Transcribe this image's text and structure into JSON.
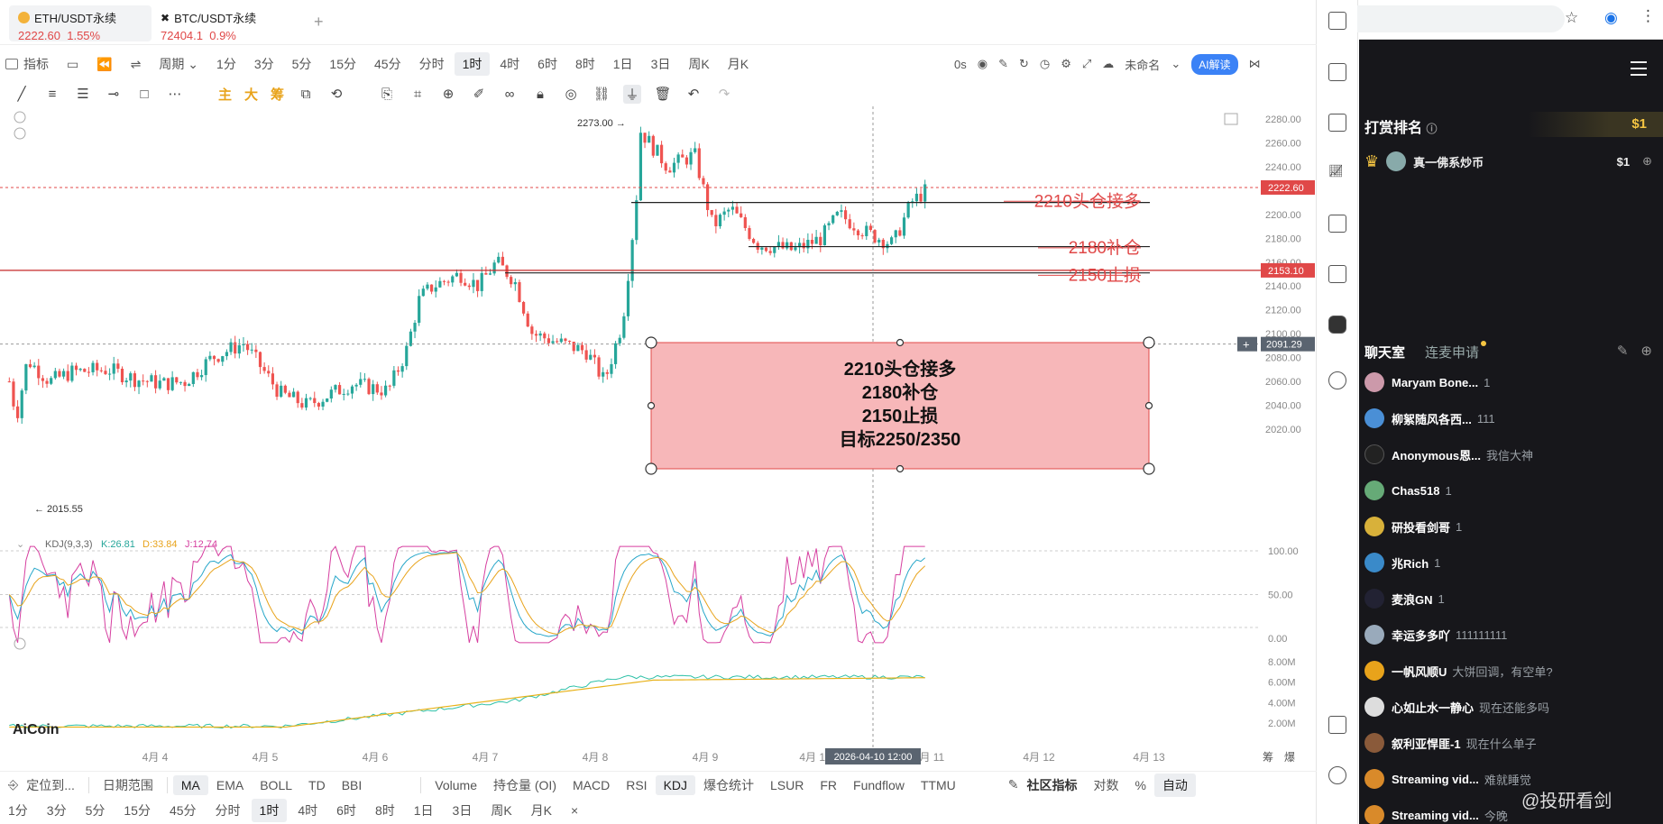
{
  "tabs": [
    {
      "name": "ETH/USDT永续",
      "price": "2222.60",
      "change": "1.55%"
    },
    {
      "name": "BTC/USDT永续",
      "price": "72404.1",
      "change": "0.9%"
    }
  ],
  "toolbar": {
    "indicator": "指标",
    "period": "周期",
    "timeframes": [
      "1分",
      "3分",
      "5分",
      "15分",
      "45分",
      "分时",
      "1时",
      "4时",
      "6时",
      "8时",
      "1日",
      "3日",
      "周K",
      "月K"
    ],
    "selected_tf": "1时",
    "countdown": "0s",
    "unnamed": "未命名",
    "ai_label": "AI解读"
  },
  "drawing_tools": {
    "main": "主",
    "big": "大",
    "chip": "筹"
  },
  "chart_data": {
    "type": "candlestick",
    "symbol": "ETH/USDT永续",
    "interval": "1时",
    "price_axis": [
      "2280.00",
      "2260.00",
      "2240.00",
      "2220.00",
      "2200.00",
      "2180.00",
      "2160.00",
      "2140.00",
      "2120.00",
      "2100.00",
      "2080.00",
      "2060.00",
      "2040.00",
      "2020.00"
    ],
    "date_axis": [
      "4月 4",
      "4月 5",
      "4月 6",
      "4月 7",
      "4月 8",
      "4月 9",
      "4月 10",
      "4月 11",
      "4月 12",
      "4月 13"
    ],
    "crosshair_time": "2026-04-10 12:00",
    "last_price": "2222.60",
    "line_price": "2153.10",
    "cursor_price": "2091.29",
    "high_label": "2273.00",
    "low_label": "2015.55",
    "annotations": [
      "2210头仓接多",
      "2180补仓",
      "2150止损"
    ],
    "note_box": [
      "2210头仓接多",
      "2180补仓",
      "2150止损",
      "目标2250/2350"
    ],
    "kdj": {
      "label": "KDJ(9,3,3)",
      "k": "K:26.81",
      "d": "D:33.84",
      "j": "J:12.74",
      "axis": [
        "100.00",
        "50.00",
        "0.00"
      ]
    },
    "volume_axis": [
      "8.00M",
      "6.00M",
      "4.00M",
      "2.00M"
    ]
  },
  "logo": "AiCoin",
  "bottom": {
    "locate": "定位到...",
    "range": "日期范围",
    "indicators": [
      "MA",
      "EMA",
      "BOLL",
      "TD",
      "BBI"
    ],
    "sub_indicators": [
      "Volume",
      "持仓量 (OI)",
      "MACD",
      "RSI",
      "KDJ",
      "爆仓统计",
      "LSUR",
      "FR",
      "Fundflow",
      "TTMU"
    ],
    "community": "社区指标",
    "log": "对数",
    "pct": "%",
    "auto": "自动",
    "chou": "筹",
    "bao": "爆"
  },
  "tfbar": [
    "1分",
    "3分",
    "5分",
    "15分",
    "45分",
    "分时",
    "1时",
    "4时",
    "6时",
    "8时",
    "1日",
    "3日",
    "周K",
    "月K"
  ],
  "panel": {
    "rank_title": "打赏排名",
    "rank_amount": "$1",
    "rank_user": "真一佛系炒币",
    "rank_user_amount": "$1",
    "chat_tab": "聊天室",
    "mic_tab": "连麦申请",
    "messages": [
      {
        "user": "Maryam Bone...",
        "text": "1"
      },
      {
        "user": "柳絮随风各西...",
        "text": "111"
      },
      {
        "user": "Anonymous恩...",
        "text": "我信大神"
      },
      {
        "user": "Chas518",
        "text": "1"
      },
      {
        "user": "研投看剑哥",
        "text": "1"
      },
      {
        "user": "兆Rich",
        "text": "1"
      },
      {
        "user": "麦浪GN",
        "text": "1"
      },
      {
        "user": "幸运多多吖",
        "text": "111111111"
      },
      {
        "user": "一帆风顺U",
        "text": "大饼回调，有空单?"
      },
      {
        "user": "心如止水一静心",
        "text": "现在还能多吗"
      },
      {
        "user": "叙利亚悍匪-1",
        "text": "现在什么单子"
      },
      {
        "user": "Streaming vid...",
        "text": "难就睡觉"
      },
      {
        "user": "Streaming vid...",
        "text": "今晚"
      }
    ],
    "watermark": "@投研看剑"
  }
}
